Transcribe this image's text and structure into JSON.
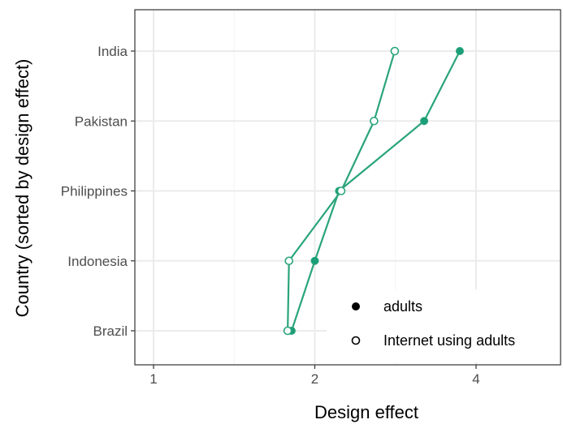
{
  "chart_data": {
    "type": "line",
    "title": "",
    "xlabel": "Design effect",
    "ylabel": "Country (sorted by design effect)",
    "x_scale": "log2",
    "xlim": [
      0.95,
      5.3
    ],
    "x_ticks": [
      1,
      2,
      4
    ],
    "x_tick_labels": [
      "1",
      "2",
      "4"
    ],
    "categories": [
      "Brazil",
      "Indonesia",
      "Philippines",
      "Pakistan",
      "India"
    ],
    "grid": true,
    "legend_position": "bottom-right",
    "series": [
      {
        "name": "adults",
        "marker": "filled-circle",
        "values": [
          1.81,
          2.0,
          2.22,
          3.2,
          3.73
        ]
      },
      {
        "name": "Internet using adults",
        "marker": "open-circle",
        "values": [
          1.78,
          1.79,
          2.24,
          2.58,
          2.82
        ]
      }
    ],
    "colors": {
      "line": "#2aa47c",
      "marker_fill": "#1a9e77",
      "legend_marker": "#000000",
      "panel_border": "#333333",
      "grid": "#ebebeb",
      "tick_text": "#4d4d4d"
    }
  }
}
